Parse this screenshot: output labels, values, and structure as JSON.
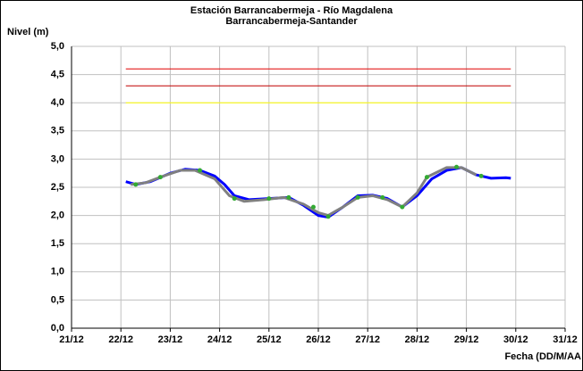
{
  "chart_data": {
    "type": "line",
    "title": "Estación Barrancabermeja - Río Magdalena",
    "subtitle": "Barrancabermeja-Santander",
    "y_label": "Nivel (m)",
    "x_label": "Fecha (DD/M/AA",
    "xlim": [
      21,
      31
    ],
    "xticks": [
      {
        "value": 21,
        "label": "21/12"
      },
      {
        "value": 22,
        "label": "22/12"
      },
      {
        "value": 23,
        "label": "23/12"
      },
      {
        "value": 24,
        "label": "24/12"
      },
      {
        "value": 25,
        "label": "25/12"
      },
      {
        "value": 26,
        "label": "26/12"
      },
      {
        "value": 27,
        "label": "27/12"
      },
      {
        "value": 28,
        "label": "28/12"
      },
      {
        "value": 29,
        "label": "29/12"
      },
      {
        "value": 30,
        "label": "30/12"
      },
      {
        "value": 31,
        "label": "31/12"
      }
    ],
    "ylim": [
      0,
      5
    ],
    "yticks": [
      {
        "value": 0,
        "label": "0,0"
      },
      {
        "value": 0.5,
        "label": "0,5"
      },
      {
        "value": 1,
        "label": "1,0"
      },
      {
        "value": 1.5,
        "label": "1,5"
      },
      {
        "value": 2,
        "label": "2,0"
      },
      {
        "value": 2.5,
        "label": "2,5"
      },
      {
        "value": 3,
        "label": "3,0"
      },
      {
        "value": 3.5,
        "label": "3,5"
      },
      {
        "value": 4,
        "label": "4,0"
      },
      {
        "value": 4.5,
        "label": "4,5"
      },
      {
        "value": 5,
        "label": "5,0"
      }
    ],
    "grid": true,
    "series": [
      {
        "color": "#e00000",
        "mode": "line",
        "width": 1,
        "x": [
          22.1,
          29.9
        ],
        "values": [
          4.6,
          4.6
        ]
      },
      {
        "color": "#c00000",
        "mode": "line",
        "width": 1,
        "x": [
          22.1,
          29.9
        ],
        "values": [
          4.3,
          4.3
        ]
      },
      {
        "color": "#ffff00",
        "mode": "line",
        "width": 1,
        "x": [
          22.1,
          29.9
        ],
        "values": [
          4.0,
          4.0
        ]
      },
      {
        "color": "#0000ff",
        "mode": "line",
        "width": 3,
        "x": [
          22.1,
          22.3,
          22.6,
          23.0,
          23.3,
          23.6,
          23.9,
          24.1,
          24.3,
          24.6,
          25.0,
          25.4,
          25.7,
          26.0,
          26.2,
          26.5,
          26.8,
          27.1,
          27.4,
          27.7,
          28.0,
          28.3,
          28.6,
          28.9,
          29.2,
          29.5,
          29.8,
          29.9
        ],
        "values": [
          2.6,
          2.55,
          2.6,
          2.75,
          2.82,
          2.8,
          2.7,
          2.55,
          2.35,
          2.28,
          2.3,
          2.32,
          2.18,
          2.0,
          1.97,
          2.15,
          2.35,
          2.36,
          2.3,
          2.15,
          2.35,
          2.65,
          2.8,
          2.85,
          2.72,
          2.66,
          2.67,
          2.66
        ]
      },
      {
        "color": "#808080",
        "mode": "line",
        "width": 3,
        "x": [
          22.2,
          22.5,
          22.8,
          23.2,
          23.5,
          23.9,
          24.2,
          24.5,
          24.9,
          25.3,
          25.7,
          26.0,
          26.2,
          26.5,
          26.8,
          27.1,
          27.4,
          27.7,
          28.0,
          28.2,
          28.6,
          28.9,
          29.2
        ],
        "values": [
          2.55,
          2.58,
          2.68,
          2.8,
          2.8,
          2.65,
          2.35,
          2.25,
          2.28,
          2.32,
          2.2,
          2.05,
          2.0,
          2.15,
          2.32,
          2.35,
          2.28,
          2.15,
          2.4,
          2.68,
          2.85,
          2.85,
          2.72
        ]
      },
      {
        "color": "#33aa33",
        "mode": "markers",
        "width": 1,
        "x": [
          22.3,
          22.8,
          23.6,
          24.3,
          25.0,
          25.4,
          25.9,
          26.2,
          26.8,
          27.3,
          27.7,
          28.2,
          28.8,
          29.3
        ],
        "values": [
          2.55,
          2.68,
          2.8,
          2.3,
          2.3,
          2.32,
          2.15,
          1.98,
          2.32,
          2.32,
          2.15,
          2.68,
          2.86,
          2.7
        ]
      }
    ]
  }
}
